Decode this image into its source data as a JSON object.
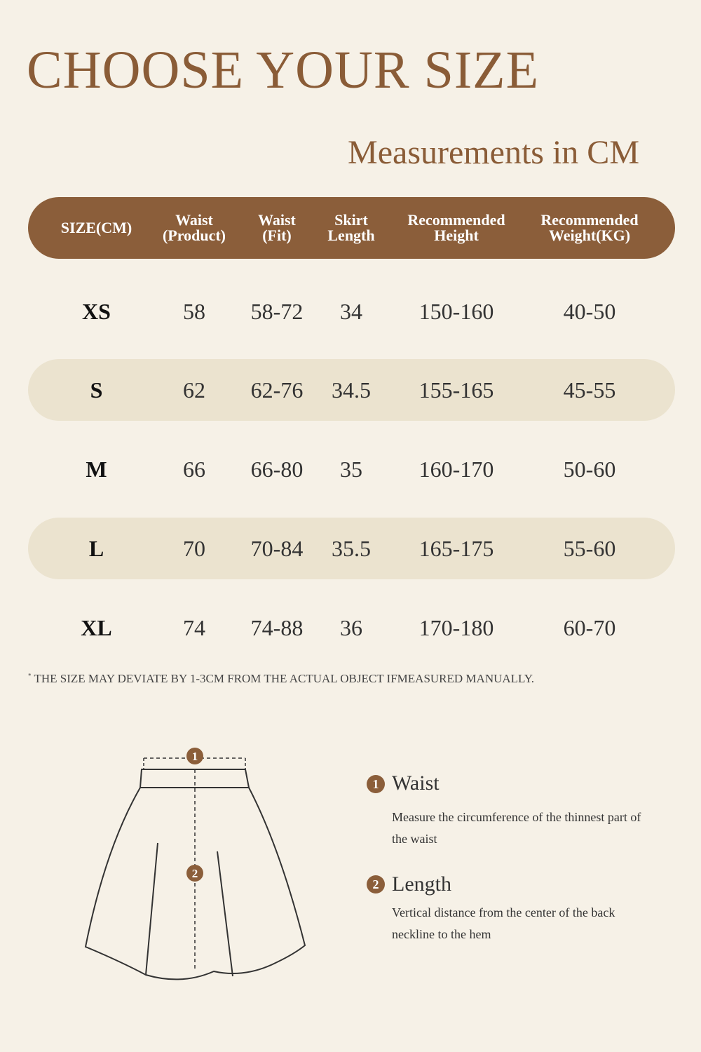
{
  "title": "CHOOSE YOUR SIZE",
  "subtitle": "Measurements in CM",
  "table": {
    "headers": [
      "SIZE(CM)",
      "Waist\n(Product)",
      "Waist\n(Fit)",
      "Skirt\nLength",
      "Recommended\nHeight",
      "Recommended\nWeight(KG)"
    ],
    "rows": [
      [
        "XS",
        "58",
        "58-72",
        "34",
        "150-160",
        "40-50"
      ],
      [
        "S",
        "62",
        "62-76",
        "34.5",
        "155-165",
        "45-55"
      ],
      [
        "M",
        "66",
        "66-80",
        "35",
        "160-170",
        "50-60"
      ],
      [
        "L",
        "70",
        "70-84",
        "35.5",
        "165-175",
        "55-60"
      ],
      [
        "XL",
        "74",
        "74-88",
        "36",
        "170-180",
        "60-70"
      ]
    ]
  },
  "note": {
    "marker": "*",
    "text": "THE SIZE MAY DEVIATE BY 1-3CM FROM THE ACTUAL OBJECT IFMEASURED MANUALLY."
  },
  "diagram": {
    "marker_1": "1",
    "marker_2": "2"
  },
  "legend": [
    {
      "number": "1",
      "title": "Waist",
      "description": "Measure the circumference of the thinnest part of the waist"
    },
    {
      "number": "2",
      "title": "Length",
      "description": "Vertical distance from the center of the back neckline to the hem"
    }
  ],
  "colors": {
    "background": "#f6f1e7",
    "accent_brown": "#8b5e3a",
    "row_shade": "#ebe3cf"
  }
}
